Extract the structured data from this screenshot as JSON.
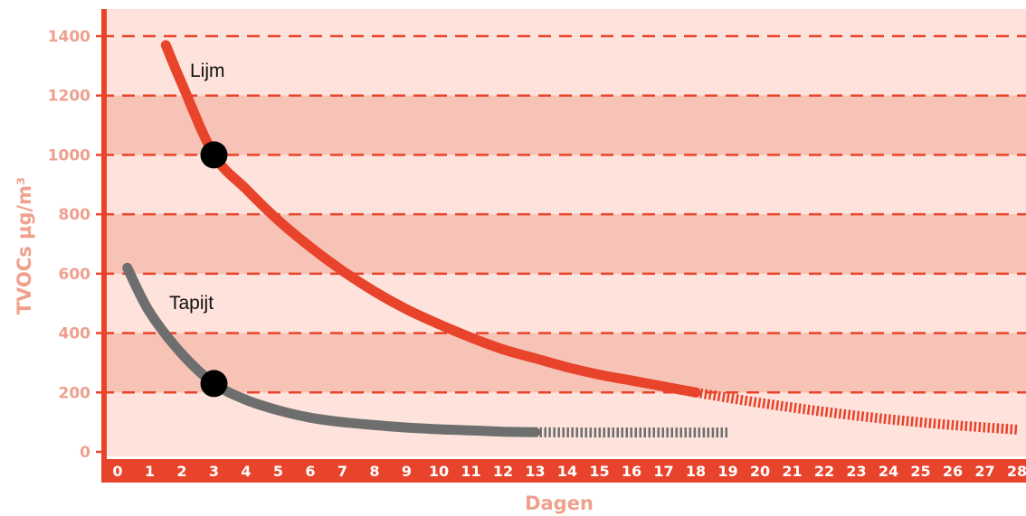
{
  "chart_data": {
    "type": "line",
    "xlabel": "Dagen",
    "ylabel": "TVOCs µg/m³",
    "xlim": [
      0,
      28
    ],
    "ylim": [
      0,
      1400
    ],
    "x_ticks": [
      "0",
      "1",
      "2",
      "3",
      "4",
      "5",
      "6",
      "7",
      "8",
      "9",
      "10",
      "11",
      "12",
      "13",
      "14",
      "15",
      "16",
      "17",
      "18",
      "19",
      "20",
      "21",
      "22",
      "23",
      "24",
      "25",
      "26",
      "27",
      "28"
    ],
    "y_ticks": [
      "0",
      "200",
      "400",
      "600",
      "800",
      "1000",
      "1200",
      "1400"
    ],
    "grid": "dashed horizontal lines with alternating shaded bands",
    "colors": {
      "axis": "#e8432b",
      "tick_text_y": "#eea08f",
      "tick_text_x": "#ffffff",
      "axis_title": "#f0a08c",
      "band_light": "#fde3dc",
      "band_dark": "#f6c3b6",
      "grid_line": "#e8432b",
      "marker": "#000000"
    },
    "series": [
      {
        "name": "Lijm",
        "color": "#e8432b",
        "points": [
          [
            1.5,
            1370
          ],
          [
            2,
            1240
          ],
          [
            3,
            1000
          ],
          [
            4,
            885
          ],
          [
            5,
            780
          ],
          [
            6,
            690
          ],
          [
            7,
            610
          ],
          [
            8,
            540
          ],
          [
            9,
            480
          ],
          [
            10,
            430
          ],
          [
            11,
            385
          ],
          [
            12,
            345
          ],
          [
            13,
            315
          ],
          [
            14,
            285
          ],
          [
            15,
            260
          ],
          [
            16,
            240
          ],
          [
            17,
            220
          ],
          [
            18,
            200
          ]
        ],
        "extrapolated_points": [
          [
            18,
            200
          ],
          [
            20,
            165
          ],
          [
            22,
            135
          ],
          [
            24,
            110
          ],
          [
            26,
            90
          ],
          [
            28,
            75
          ]
        ],
        "marker": {
          "x": 3,
          "y": 1000
        }
      },
      {
        "name": "Tapijt",
        "color": "#6e6e6e",
        "points": [
          [
            0.3,
            620
          ],
          [
            1,
            470
          ],
          [
            2,
            330
          ],
          [
            3,
            230
          ],
          [
            4,
            175
          ],
          [
            5,
            140
          ],
          [
            6,
            115
          ],
          [
            7,
            100
          ],
          [
            8,
            90
          ],
          [
            9,
            82
          ],
          [
            10,
            76
          ],
          [
            11,
            72
          ],
          [
            12,
            68
          ],
          [
            13,
            66
          ]
        ],
        "extrapolated_points": [
          [
            13,
            66
          ],
          [
            15,
            65
          ],
          [
            17,
            65
          ],
          [
            19,
            65
          ]
        ],
        "marker": {
          "x": 3,
          "y": 230
        }
      }
    ]
  }
}
